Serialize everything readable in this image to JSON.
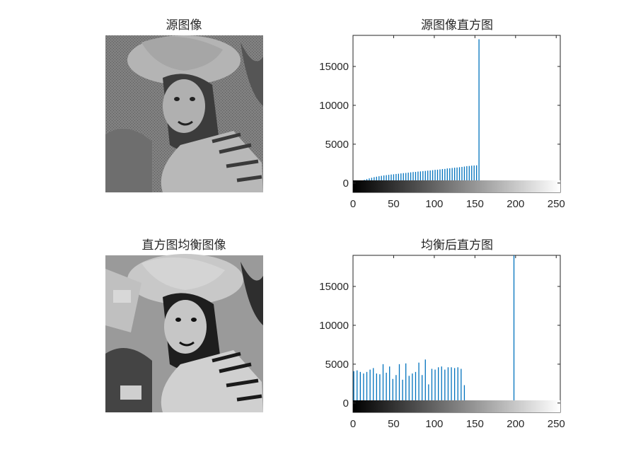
{
  "window": {
    "background": "#ffffff"
  },
  "panels": {
    "src_image": {
      "title": "源图像"
    },
    "eq_image": {
      "title": "直方图均衡图像"
    }
  },
  "colors": {
    "bar": "#0072bd",
    "axis": "#262626",
    "image_bg_src": "#8c8c8c",
    "image_bg_eq": "#bfbfbf"
  },
  "chart_data": [
    {
      "type": "bar",
      "title": "源图像直方图",
      "xlabel": "",
      "ylabel": "",
      "xlim": [
        0,
        255
      ],
      "ylim": [
        -1200,
        19000
      ],
      "xticks": [
        0,
        50,
        100,
        150,
        200,
        250
      ],
      "yticks": [
        0,
        5000,
        10000,
        15000
      ],
      "colorbar": "grayscale 0-255",
      "x": [
        5,
        8,
        11,
        14,
        17,
        20,
        23,
        26,
        29,
        32,
        35,
        38,
        41,
        44,
        47,
        50,
        53,
        56,
        59,
        62,
        65,
        68,
        71,
        74,
        77,
        80,
        83,
        86,
        89,
        92,
        95,
        98,
        101,
        104,
        107,
        110,
        113,
        116,
        119,
        122,
        125,
        128,
        131,
        134,
        137,
        140,
        143,
        146,
        149,
        152,
        155
      ],
      "values": [
        100,
        200,
        300,
        420,
        520,
        600,
        680,
        760,
        820,
        880,
        930,
        980,
        1020,
        1060,
        1100,
        1130,
        1170,
        1200,
        1240,
        1280,
        1300,
        1340,
        1380,
        1420,
        1440,
        1480,
        1500,
        1540,
        1560,
        1600,
        1620,
        1660,
        1700,
        1720,
        1760,
        1800,
        1820,
        1880,
        1900,
        1940,
        1980,
        2000,
        2040,
        2080,
        2120,
        2180,
        2200,
        2240,
        2260,
        2280,
        18500
      ]
    },
    {
      "type": "bar",
      "title": "均衡后直方图",
      "xlabel": "",
      "ylabel": "",
      "xlim": [
        0,
        255
      ],
      "ylim": [
        -1200,
        19000
      ],
      "xticks": [
        0,
        50,
        100,
        150,
        200,
        250
      ],
      "yticks": [
        0,
        5000,
        10000,
        15000
      ],
      "colorbar": "grayscale 0-255",
      "x": [
        1,
        5,
        9,
        13,
        17,
        21,
        25,
        29,
        33,
        37,
        41,
        45,
        49,
        53,
        57,
        61,
        65,
        69,
        73,
        77,
        81,
        85,
        89,
        93,
        97,
        101,
        105,
        109,
        113,
        117,
        121,
        125,
        129,
        133,
        137,
        198
      ],
      "values": [
        4100,
        4200,
        4000,
        3800,
        4000,
        4300,
        4500,
        3800,
        3700,
        5000,
        3900,
        4700,
        3100,
        3600,
        5000,
        3000,
        5100,
        3500,
        3800,
        4000,
        5200,
        3600,
        5600,
        2400,
        4400,
        4300,
        4600,
        4700,
        4300,
        4600,
        4600,
        4500,
        4600,
        4400,
        2300,
        19000
      ]
    }
  ]
}
